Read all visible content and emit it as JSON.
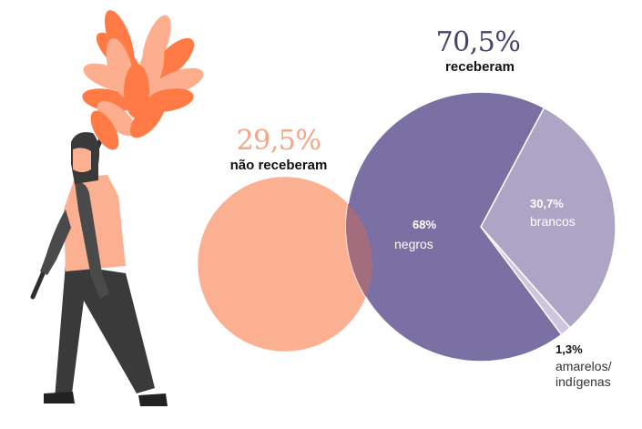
{
  "colors": {
    "not_received": "#fbb092",
    "not_received_text": "#f5a586",
    "received_text": "#4b3f6b",
    "negros": "#7b70a3",
    "brancos": "#ada4c6",
    "amarelos": "#cdc6df",
    "overlap": "#a36d7e",
    "label_dark": "#333333",
    "label_light": "#ffffff"
  },
  "illustration": {
    "name": "person-carrying-feather-duster-illustration"
  },
  "chart_data": {
    "type": "pie",
    "groups": [
      {
        "name": "não receberam",
        "pct_text": "29,5%",
        "value": 29.5
      },
      {
        "name": "receberam",
        "pct_text": "70,5%",
        "value": 70.5,
        "slices": [
          {
            "name": "negros",
            "pct_text": "68%",
            "value": 68.0
          },
          {
            "name": "brancos",
            "pct_text": "30,7%",
            "value": 30.7
          },
          {
            "name": "amarelos/ indígenas",
            "line1": "amarelos/",
            "line2": "indígenas",
            "pct_text": "1,3%",
            "value": 1.3
          }
        ]
      }
    ]
  }
}
